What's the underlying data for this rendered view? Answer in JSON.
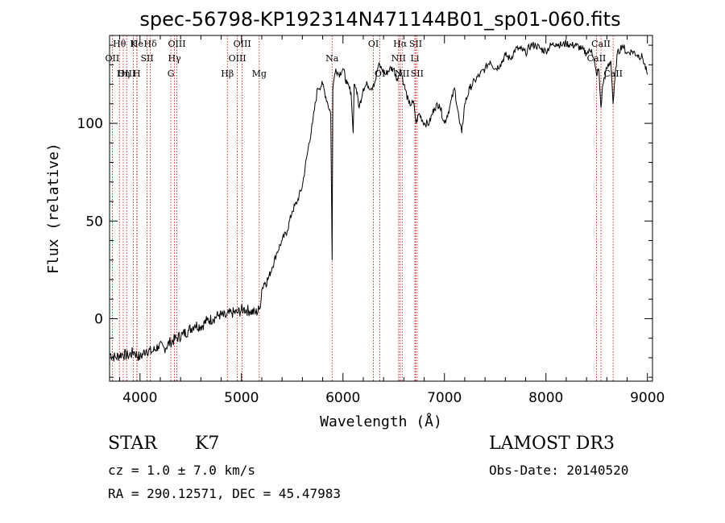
{
  "chart_data": {
    "type": "line",
    "title": "spec-56798-KP192314N471144B01_sp01-060.fits",
    "xlabel": "Wavelength (Å)",
    "ylabel": "Flux (relative)",
    "xlim": [
      3700,
      9050
    ],
    "ylim": [
      -32,
      145
    ],
    "xticks": [
      4000,
      5000,
      6000,
      7000,
      8000,
      9000
    ],
    "yticks": [
      0,
      50,
      100
    ],
    "series": [
      {
        "name": "spectrum",
        "x": [
          3700,
          3760,
          3820,
          3880,
          3940,
          4000,
          4060,
          4120,
          4180,
          4240,
          4300,
          4360,
          4420,
          4480,
          4540,
          4600,
          4660,
          4720,
          4780,
          4840,
          4900,
          4960,
          5020,
          5080,
          5140,
          5180,
          5200,
          5220,
          5260,
          5300,
          5350,
          5400,
          5450,
          5500,
          5550,
          5600,
          5650,
          5700,
          5750,
          5800,
          5850,
          5880,
          5893,
          5900,
          5910,
          5930,
          5960,
          6000,
          6040,
          6080,
          6100,
          6110,
          6130,
          6160,
          6200,
          6240,
          6280,
          6300,
          6320,
          6350,
          6380,
          6420,
          6460,
          6500,
          6540,
          6563,
          6580,
          6600,
          6650,
          6700,
          6720,
          6750,
          6800,
          6850,
          6900,
          6950,
          7000,
          7050,
          7100,
          7150,
          7170,
          7200,
          7250,
          7300,
          7350,
          7400,
          7450,
          7500,
          7550,
          7600,
          7650,
          7700,
          7750,
          7800,
          7850,
          7900,
          7950,
          8000,
          8050,
          8100,
          8150,
          8200,
          8250,
          8300,
          8350,
          8400,
          8450,
          8498,
          8520,
          8542,
          8560,
          8600,
          8640,
          8662,
          8700,
          8750,
          8800,
          8850,
          8900,
          8950,
          9000
        ],
        "y": [
          -18,
          -20,
          -18,
          -19,
          -17,
          -20,
          -16,
          -17,
          -14,
          -15,
          -12,
          -10,
          -8,
          -6,
          -3,
          -4,
          -1,
          0,
          2,
          1,
          3,
          3,
          5,
          4,
          3,
          5,
          15,
          18,
          20,
          26,
          34,
          40,
          45,
          55,
          60,
          68,
          85,
          100,
          118,
          120,
          110,
          105,
          30,
          118,
          122,
          128,
          125,
          128,
          120,
          116,
          95,
          120,
          118,
          108,
          118,
          120,
          118,
          120,
          122,
          130,
          128,
          125,
          128,
          128,
          122,
          128,
          125,
          120,
          110,
          110,
          100,
          105,
          100,
          100,
          108,
          110,
          100,
          108,
          118,
          100,
          95,
          110,
          118,
          122,
          125,
          128,
          132,
          128,
          130,
          135,
          133,
          138,
          138,
          136,
          140,
          140,
          138,
          137,
          140,
          141,
          140,
          141,
          140,
          140,
          138,
          136,
          138,
          125,
          128,
          108,
          120,
          128,
          132,
          110,
          135,
          140,
          136,
          137,
          135,
          134,
          125
        ]
      }
    ],
    "line_markers": [
      {
        "label": "Hθ",
        "x": 3797
      },
      {
        "label": "OII",
        "x": 3727
      },
      {
        "label": "OIII",
        "x": 3869
      },
      {
        "label": "K",
        "x": 3934
      },
      {
        "label": "He",
        "x": 3970
      },
      {
        "label": "Hη",
        "x": 3835
      },
      {
        "label": "H",
        "x": 3968
      },
      {
        "label": "SII",
        "x": 4070
      },
      {
        "label": "Hδ",
        "x": 4102
      },
      {
        "label": "OIII",
        "x": 4363
      },
      {
        "label": "Hγ",
        "x": 4340
      },
      {
        "label": "G",
        "x": 4304
      },
      {
        "label": "OIII",
        "x": 5007
      },
      {
        "label": "OIII",
        "x": 4959
      },
      {
        "label": "Hβ",
        "x": 4861
      },
      {
        "label": "Mg",
        "x": 5175
      },
      {
        "label": "Na",
        "x": 5893
      },
      {
        "label": "OI",
        "x": 6300
      },
      {
        "label": "OI",
        "x": 6364
      },
      {
        "label": "Hα",
        "x": 6563
      },
      {
        "label": "NII",
        "x": 6548
      },
      {
        "label": "NII",
        "x": 6583
      },
      {
        "label": "SII",
        "x": 6716
      },
      {
        "label": "Li",
        "x": 6708
      },
      {
        "label": "SII",
        "x": 6731
      },
      {
        "label": "CaII",
        "x": 8542
      },
      {
        "label": "CaII",
        "x": 8498
      },
      {
        "label": "CaII",
        "x": 8662
      }
    ]
  },
  "footer": {
    "object_class": "STAR",
    "subclass": "K7",
    "survey": "LAMOST DR3",
    "cz": "cz = 1.0 ± 7.0 km/s",
    "obs_date": "Obs-Date: 20140520",
    "coords": "RA = 290.12571, DEC =  45.47983"
  }
}
